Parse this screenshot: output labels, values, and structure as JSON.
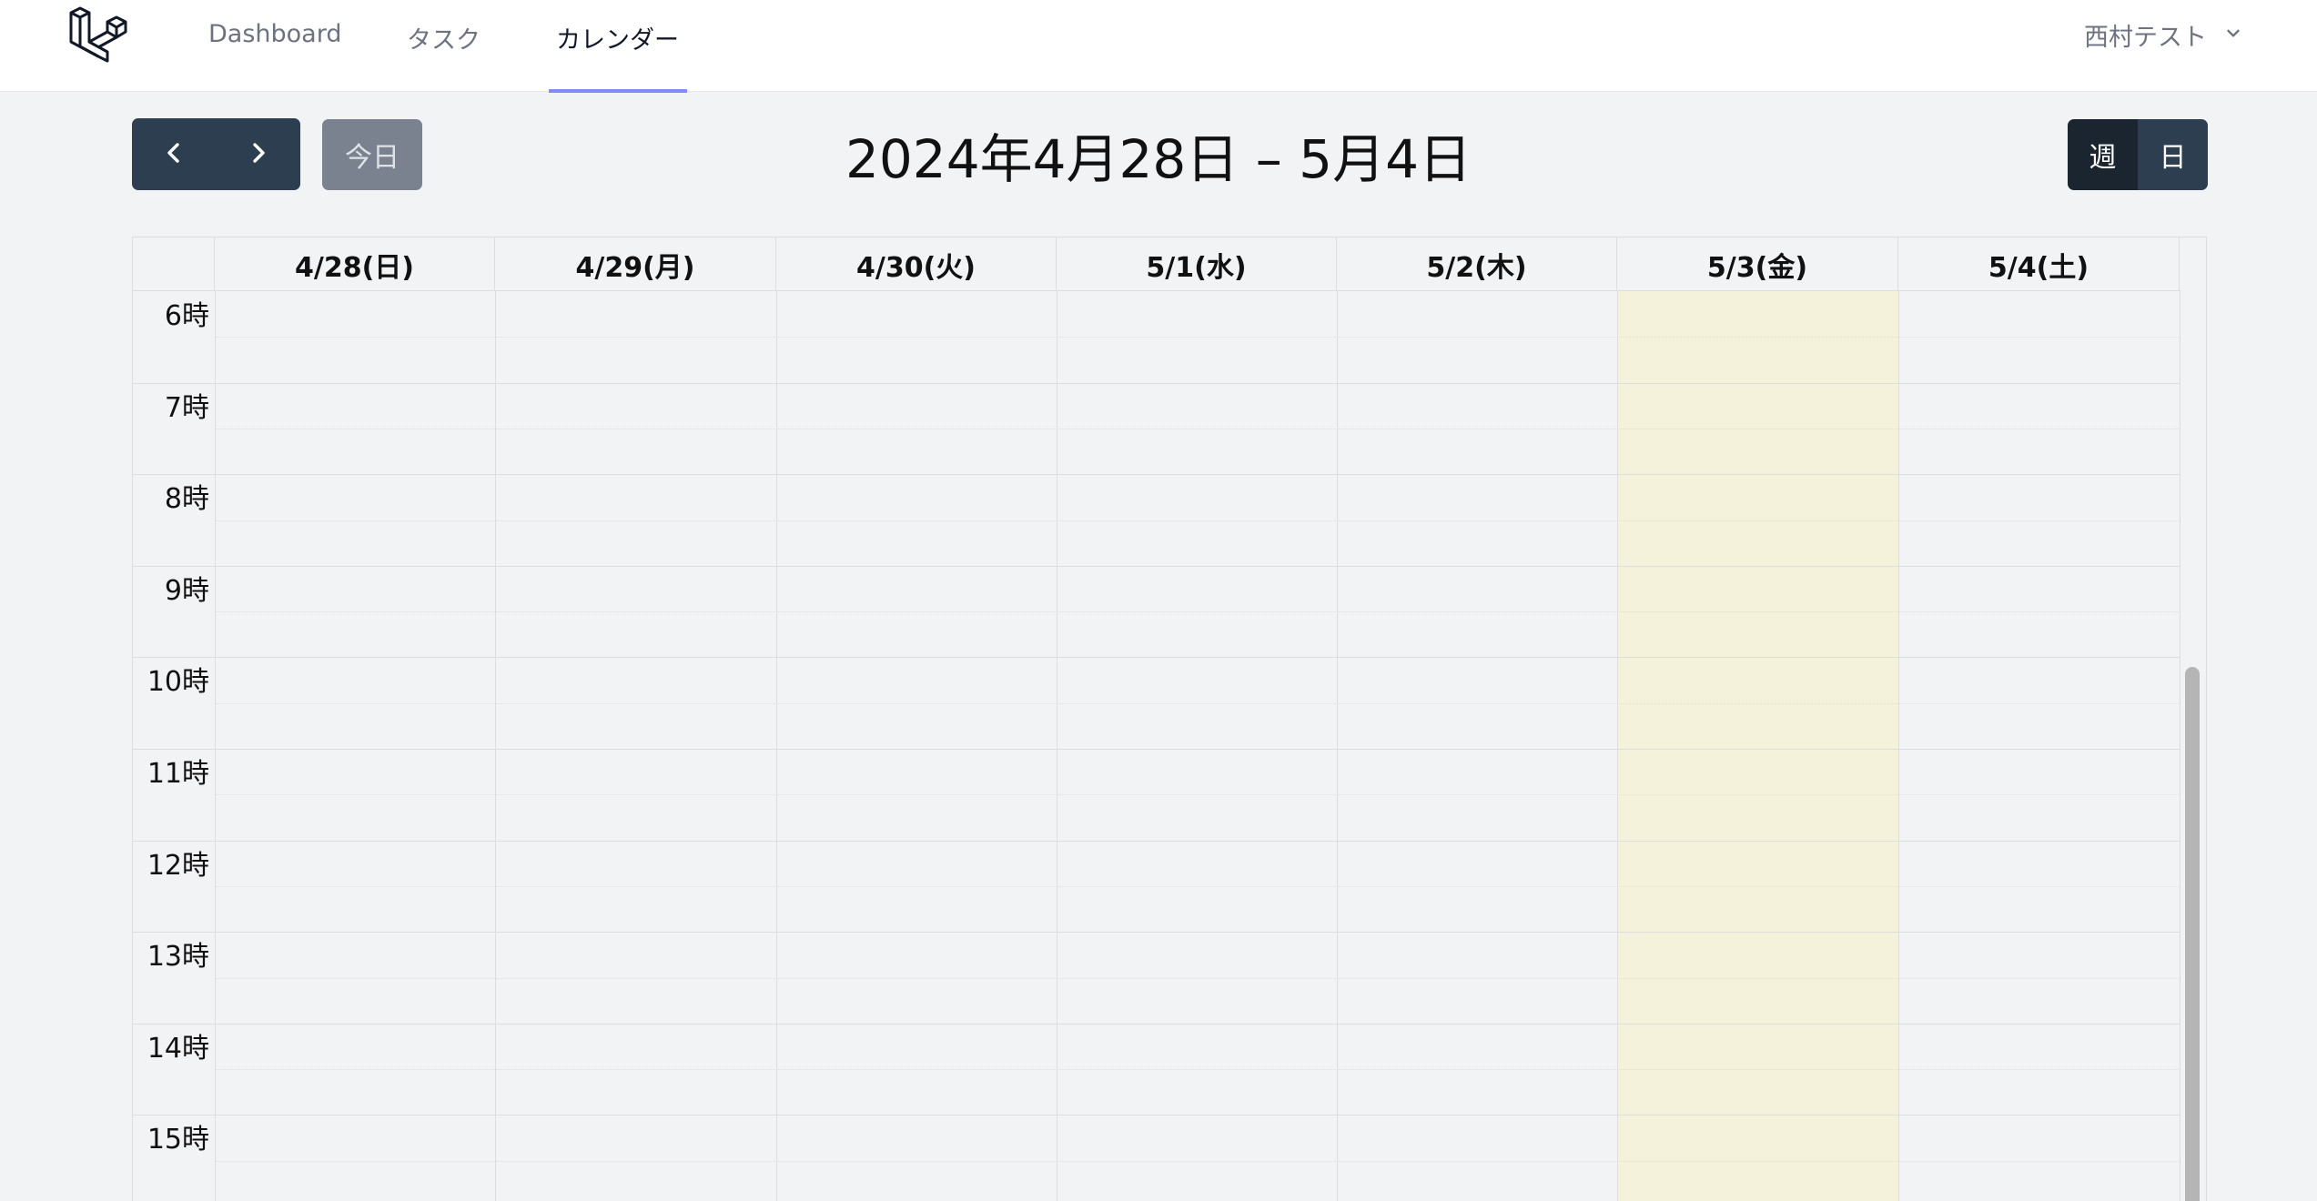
{
  "nav": {
    "items": [
      {
        "label": "Dashboard",
        "active": false
      },
      {
        "label": "タスク",
        "active": false
      },
      {
        "label": "カレンダー",
        "active": true
      }
    ],
    "user_name": "西村テスト",
    "accent_color": "#818cf8"
  },
  "toolbar": {
    "prev_icon": "chevron-left-icon",
    "next_icon": "chevron-right-icon",
    "today_label": "今日",
    "title": "2024年4月28日 – 5月4日",
    "views": [
      {
        "label": "週",
        "active": true
      },
      {
        "label": "日",
        "active": false
      }
    ]
  },
  "calendar": {
    "days": [
      "4/28(日)",
      "4/29(月)",
      "4/30(火)",
      "5/1(水)",
      "5/2(木)",
      "5/3(金)",
      "5/4(土)"
    ],
    "today_index": 5,
    "today_color": "#f5f2db",
    "hours": [
      "6時",
      "7時",
      "8時",
      "9時",
      "10時",
      "11時",
      "12時",
      "13時",
      "14時",
      "15時"
    ]
  }
}
